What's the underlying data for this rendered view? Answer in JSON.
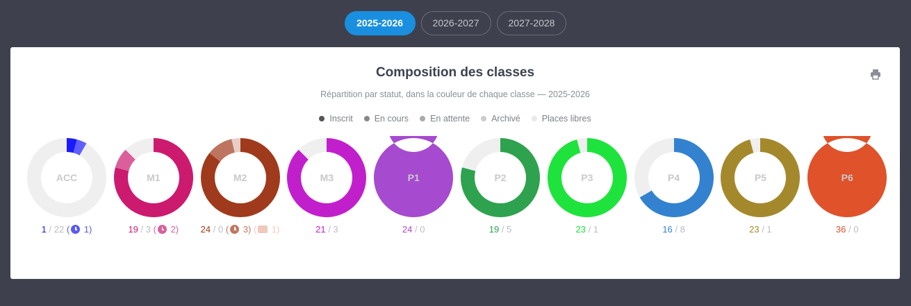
{
  "year_tabs": [
    {
      "label": "2025-2026",
      "active": true
    },
    {
      "label": "2026-2027",
      "active": false
    },
    {
      "label": "2027-2028",
      "active": false
    }
  ],
  "card": {
    "title": "Composition des classes",
    "subtitle": "Répartition par statut, dans la couleur de chaque classe — 2025-2026",
    "print_icon": "printer-icon"
  },
  "legend": [
    {
      "label": "Inscrit",
      "color": "#555555"
    },
    {
      "label": "En cours",
      "color": "#888888"
    },
    {
      "label": "En attente",
      "color": "#aaaaaa"
    },
    {
      "label": "Archivé",
      "color": "#cccccc"
    },
    {
      "label": "Places libres",
      "color": "#e9e9e9"
    }
  ],
  "chart_data": {
    "type": "donut",
    "free_color": "#efefef",
    "classes": [
      {
        "name": "ACC",
        "color": "#1a1aff",
        "inscrit": 1,
        "en_cours": 1,
        "archive": 0,
        "libres": 22,
        "stat_inscrit": "1",
        "stat_libres": "22",
        "extra": [
          {
            "kind": "clock",
            "value": "1",
            "color": "#5a5af5"
          }
        ]
      },
      {
        "name": "M1",
        "color": "#cc1a6e",
        "inscrit": 19,
        "en_cours": 2,
        "archive": 0,
        "libres": 3,
        "stat_inscrit": "19",
        "stat_libres": "3",
        "extra": [
          {
            "kind": "clock",
            "value": "2",
            "color": "#d9609b"
          }
        ]
      },
      {
        "name": "M2",
        "color": "#a03a1c",
        "inscrit": 24,
        "en_cours": 3,
        "archive": 1,
        "libres": 0,
        "stat_inscrit": "24",
        "stat_libres": "0",
        "extra": [
          {
            "kind": "clock",
            "value": "3",
            "color": "#c07860"
          },
          {
            "kind": "archive",
            "value": "1",
            "color": "#f0c8bc"
          }
        ]
      },
      {
        "name": "M3",
        "color": "#c21fcc",
        "inscrit": 21,
        "en_cours": 0,
        "archive": 0,
        "libres": 3,
        "stat_inscrit": "21",
        "stat_libres": "3",
        "extra": []
      },
      {
        "name": "P1",
        "color": "#a64acf",
        "inscrit": 24,
        "en_cours": 0,
        "archive": 0,
        "libres": 0,
        "stat_inscrit": "24",
        "stat_libres": "0",
        "extra": []
      },
      {
        "name": "P2",
        "color": "#2ea24e",
        "inscrit": 19,
        "en_cours": 0,
        "archive": 0,
        "libres": 5,
        "stat_inscrit": "19",
        "stat_libres": "5",
        "extra": []
      },
      {
        "name": "P3",
        "color": "#1ee33c",
        "inscrit": 23,
        "en_cours": 0,
        "archive": 0,
        "libres": 1,
        "stat_inscrit": "23",
        "stat_libres": "1",
        "extra": []
      },
      {
        "name": "P4",
        "color": "#3282cf",
        "inscrit": 16,
        "en_cours": 0,
        "archive": 0,
        "libres": 8,
        "stat_inscrit": "16",
        "stat_libres": "8",
        "extra": []
      },
      {
        "name": "P5",
        "color": "#a4892c",
        "inscrit": 23,
        "en_cours": 0,
        "archive": 0,
        "libres": 1,
        "stat_inscrit": "23",
        "stat_libres": "1",
        "extra": []
      },
      {
        "name": "P6",
        "color": "#e0522a",
        "inscrit": 36,
        "en_cours": 0,
        "archive": 0,
        "libres": 0,
        "stat_inscrit": "36",
        "stat_libres": "0",
        "extra": []
      }
    ]
  }
}
